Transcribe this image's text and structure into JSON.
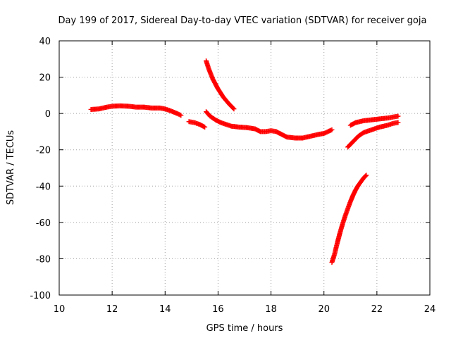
{
  "chart_data": {
    "type": "scatter",
    "title": "Day 199 of 2017, Sidereal Day-to-day VTEC variation (SDTVAR) for receiver goja",
    "xlabel": "GPS time / hours",
    "ylabel": "SDTVAR / TECUs",
    "xlim": [
      10,
      24
    ],
    "ylim": [
      -100,
      40
    ],
    "x_ticks": [
      "10",
      "12",
      "14",
      "16",
      "18",
      "20",
      "22",
      "24"
    ],
    "y_ticks": [
      "-100",
      "-80",
      "-60",
      "-40",
      "-20",
      "0",
      "20",
      "40"
    ],
    "grid": true,
    "marker": "plus",
    "series_color": "#ff0000",
    "series": [
      {
        "name": "arc-1",
        "points": [
          [
            11.2,
            2.2
          ],
          [
            11.5,
            2.5
          ],
          [
            11.8,
            3.5
          ],
          [
            12.0,
            4.0
          ],
          [
            12.3,
            4.2
          ],
          [
            12.6,
            4.0
          ],
          [
            12.9,
            3.5
          ],
          [
            13.2,
            3.5
          ],
          [
            13.5,
            3.0
          ],
          [
            13.8,
            3.0
          ],
          [
            14.0,
            2.5
          ],
          [
            14.2,
            1.5
          ],
          [
            14.45,
            0.0
          ],
          [
            14.6,
            -1.0
          ]
        ]
      },
      {
        "name": "arc-2",
        "points": [
          [
            14.9,
            -4.5
          ],
          [
            15.1,
            -5.0
          ],
          [
            15.3,
            -6.0
          ],
          [
            15.5,
            -7.5
          ]
        ]
      },
      {
        "name": "arc-3",
        "points": [
          [
            15.55,
            29.0
          ],
          [
            15.65,
            24.5
          ],
          [
            15.8,
            19.0
          ],
          [
            16.0,
            13.5
          ],
          [
            16.2,
            9.0
          ],
          [
            16.4,
            5.5
          ],
          [
            16.6,
            2.5
          ]
        ]
      },
      {
        "name": "arc-4",
        "points": [
          [
            15.55,
            1.0
          ],
          [
            15.7,
            -1.5
          ],
          [
            15.9,
            -3.5
          ],
          [
            16.1,
            -5.0
          ],
          [
            16.3,
            -6.0
          ],
          [
            16.5,
            -7.0
          ],
          [
            16.8,
            -7.5
          ],
          [
            17.1,
            -7.8
          ],
          [
            17.4,
            -8.5
          ],
          [
            17.6,
            -10.0
          ],
          [
            17.8,
            -10.0
          ],
          [
            18.0,
            -9.5
          ],
          [
            18.2,
            -10.0
          ],
          [
            18.4,
            -11.5
          ],
          [
            18.6,
            -13.0
          ],
          [
            18.9,
            -13.5
          ],
          [
            19.2,
            -13.5
          ],
          [
            19.5,
            -12.5
          ],
          [
            19.8,
            -11.5
          ],
          [
            20.0,
            -11.0
          ],
          [
            20.15,
            -10.0
          ],
          [
            20.3,
            -9.0
          ]
        ]
      },
      {
        "name": "arc-5",
        "points": [
          [
            21.0,
            -6.5
          ],
          [
            21.2,
            -5.0
          ],
          [
            21.5,
            -4.0
          ],
          [
            21.8,
            -3.5
          ],
          [
            22.1,
            -3.0
          ],
          [
            22.4,
            -2.5
          ],
          [
            22.6,
            -2.0
          ],
          [
            22.8,
            -1.5
          ]
        ]
      },
      {
        "name": "arc-6",
        "points": [
          [
            20.9,
            -18.5
          ],
          [
            21.1,
            -15.5
          ],
          [
            21.3,
            -12.5
          ],
          [
            21.5,
            -10.5
          ],
          [
            21.8,
            -9.0
          ],
          [
            22.1,
            -7.5
          ],
          [
            22.4,
            -6.5
          ],
          [
            22.6,
            -5.5
          ],
          [
            22.8,
            -5.0
          ]
        ]
      },
      {
        "name": "arc-7",
        "points": [
          [
            20.3,
            -82.0
          ],
          [
            20.4,
            -77.5
          ],
          [
            20.5,
            -71.5
          ],
          [
            20.6,
            -66.0
          ],
          [
            20.7,
            -61.0
          ],
          [
            20.8,
            -56.5
          ],
          [
            20.9,
            -52.5
          ],
          [
            21.0,
            -48.5
          ],
          [
            21.1,
            -45.0
          ],
          [
            21.2,
            -42.0
          ],
          [
            21.3,
            -39.5
          ],
          [
            21.4,
            -37.5
          ],
          [
            21.5,
            -35.5
          ],
          [
            21.6,
            -34.0
          ]
        ]
      }
    ]
  }
}
